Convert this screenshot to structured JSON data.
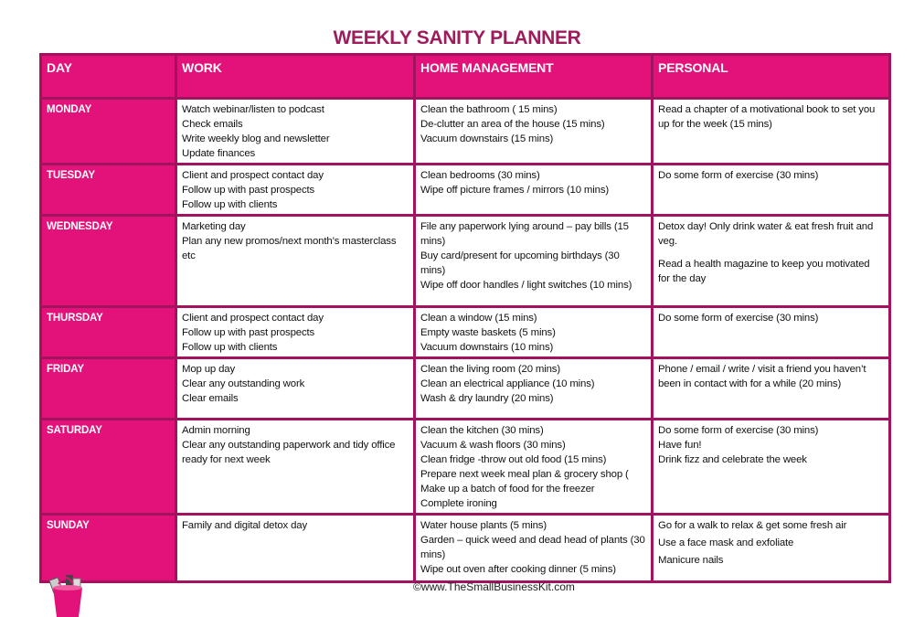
{
  "title": "WEEKLY SANITY PLANNER",
  "headers": [
    "DAY",
    "WORK",
    "HOME MANAGEMENT",
    "PERSONAL"
  ],
  "rows": [
    {
      "day": "MONDAY",
      "height": 67,
      "work": [
        [
          "Watch webinar/listen to podcast",
          "Check emails",
          "Write weekly blog and newsletter",
          "Update finances"
        ]
      ],
      "home": [
        [
          "Clean the bathroom ( 15 mins)",
          "De-clutter an area of the house (15 mins)",
          "Vacuum downstairs (15 mins)"
        ]
      ],
      "personal": [
        [
          "Read a chapter of a motivational book to set you up for the week (15 mins)"
        ]
      ]
    },
    {
      "day": "TUESDAY",
      "height": 51,
      "work": [
        [
          "Client and prospect contact day",
          "Follow up with past prospects",
          "Follow up with clients"
        ]
      ],
      "home": [
        [
          "Clean bedrooms (30 mins)",
          "Wipe off picture frames / mirrors (10 mins)"
        ]
      ],
      "personal": [
        [
          "Do some form of exercise (30 mins)"
        ]
      ]
    },
    {
      "day": "WEDNESDAY",
      "height": 100,
      "work": [
        [
          "Marketing day",
          "Plan any new promos/next month’s masterclass etc"
        ]
      ],
      "home": [
        [
          "File any paperwork lying around – pay bills (15 mins)",
          "Buy card/present for upcoming birthdays (30 mins)",
          "Wipe off door handles / light switches (10 mins)"
        ]
      ],
      "personal": [
        [
          "Detox day!  Only drink water & eat fresh fruit and veg."
        ],
        [
          "Read a health magazine to keep you motivated for the day"
        ]
      ]
    },
    {
      "day": "THURSDAY",
      "height": 51,
      "work": [
        [
          "Client and prospect contact day",
          "Follow up with past prospects",
          "Follow up with clients"
        ]
      ],
      "home": [
        [
          "Clean a window (15 mins)",
          "Empty waste baskets (5 mins)",
          "Vacuum downstairs (10 mins)"
        ]
      ],
      "personal": [
        [
          "Do some form of exercise (30 mins)"
        ]
      ]
    },
    {
      "day": "FRIDAY",
      "height": 67,
      "work": [
        [
          "Mop up day",
          "Clear any outstanding work",
          "Clear emails"
        ]
      ],
      "home": [
        [
          "Clean the living room (20 mins)",
          "Clean an electrical appliance (10 mins)",
          "Wash & dry laundry (20 mins)"
        ]
      ],
      "personal": [
        [
          "Phone / email / write / visit a friend you haven’t been in contact with for a while (20 mins)"
        ]
      ]
    },
    {
      "day": "SATURDAY",
      "height": 100,
      "work": [
        [
          "Admin morning",
          "Clear any outstanding paperwork and tidy office ready for next week"
        ]
      ],
      "home": [
        [
          "Clean the kitchen (30 mins)",
          "Vacuum & wash floors (30 mins)",
          "Clean fridge -throw out old food (15 mins)",
          "Prepare next week meal plan & grocery shop (",
          "Make up a batch of food for the freezer",
          "Complete ironing"
        ]
      ],
      "personal": [
        [
          "Do some form of exercise (30 mins)",
          "Have fun!",
          "Drink fizz and celebrate the week"
        ]
      ]
    },
    {
      "day": "SUNDAY",
      "height": 74,
      "work": [
        [
          "Family and digital detox day"
        ]
      ],
      "home": [
        [
          "Water house plants (5 mins)",
          "Garden – quick weed and dead head of plants (30 mins)",
          "Wipe out oven after cooking dinner (5 mins)"
        ]
      ],
      "personal": [
        [
          "Go for a walk to relax & get some fresh air"
        ],
        [
          "Use a face mask and exfoliate"
        ],
        [
          "Manicure nails"
        ]
      ]
    }
  ],
  "footer": "©www.TheSmallBusinessKit.com",
  "colors": {
    "header_bg": "#e2127a",
    "border": "#a3125e",
    "title": "#9e1b5c"
  }
}
